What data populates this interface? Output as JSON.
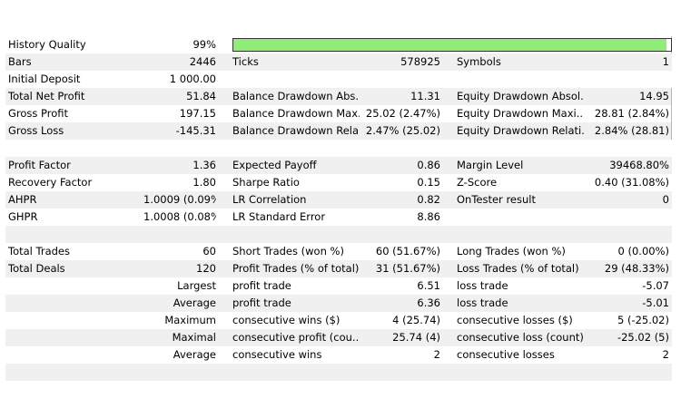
{
  "history_quality": {
    "label": "History Quality",
    "value": "99%",
    "fill_percent": 99,
    "bar_color": "#90ee78"
  },
  "rows": [
    {
      "id": "bars",
      "alt": true,
      "c0": "Bars",
      "c1": "2446",
      "c2": "Ticks",
      "c3": "578925",
      "c4": "Symbols",
      "c5": "1"
    },
    {
      "id": "initial-deposit",
      "alt": false,
      "c0": "Initial Deposit",
      "c1": "1 000.00",
      "c2": "",
      "c3": "",
      "c4": "",
      "c5": ""
    },
    {
      "id": "net-profit",
      "alt": true,
      "c0": "Total Net Profit",
      "c1": "51.84",
      "c2": "Balance Drawdown Abs...",
      "c3": "11.31",
      "c4": "Equity Drawdown Absol...",
      "c5": "14.95"
    },
    {
      "id": "gross-profit",
      "alt": false,
      "c0": "Gross Profit",
      "c1": "197.15",
      "c2": "Balance Drawdown Max...",
      "c3": "25.02 (2.47%)",
      "c4": "Equity Drawdown Maxi...",
      "c5": "28.81 (2.84%)"
    },
    {
      "id": "gross-loss",
      "alt": true,
      "c0": "Gross Loss",
      "c1": "-145.31",
      "c2": "Balance Drawdown Rela...",
      "c3": "2.47% (25.02)",
      "c4": "Equity Drawdown Relati...",
      "c5": "2.84% (28.81)"
    },
    {
      "id": "spacer-1",
      "alt": false,
      "c0": "",
      "c1": "",
      "c2": "",
      "c3": "",
      "c4": "",
      "c5": ""
    },
    {
      "id": "profit-factor",
      "alt": true,
      "c0": "Profit Factor",
      "c1": "1.36",
      "c2": "Expected Payoff",
      "c3": "0.86",
      "c4": "Margin Level",
      "c5": "39468.80%"
    },
    {
      "id": "recovery-factor",
      "alt": false,
      "c0": "Recovery Factor",
      "c1": "1.80",
      "c2": "Sharpe Ratio",
      "c3": "0.15",
      "c4": "Z-Score",
      "c5": "0.40 (31.08%)"
    },
    {
      "id": "ahpr",
      "alt": true,
      "c0": "AHPR",
      "c1": "1.0009 (0.09%)",
      "c2": "LR Correlation",
      "c3": "0.82",
      "c4": "OnTester result",
      "c5": "0"
    },
    {
      "id": "ghpr",
      "alt": false,
      "c0": "GHPR",
      "c1": "1.0008 (0.08%)",
      "c2": "LR Standard Error",
      "c3": "8.86",
      "c4": "",
      "c5": ""
    },
    {
      "id": "spacer-2",
      "alt": true,
      "c0": "",
      "c1": "",
      "c2": "",
      "c3": "",
      "c4": "",
      "c5": ""
    },
    {
      "id": "total-trades",
      "alt": false,
      "c0": "Total Trades",
      "c1": "60",
      "c2": "Short Trades (won %)",
      "c3": "60 (51.67%)",
      "c4": "Long Trades (won %)",
      "c5": "0 (0.00%)"
    },
    {
      "id": "total-deals",
      "alt": true,
      "c0": "Total Deals",
      "c1": "120",
      "c2": "Profit Trades (% of total)",
      "c3": "31 (51.67%)",
      "c4": "Loss Trades (% of total)",
      "c5": "29 (48.33%)"
    },
    {
      "id": "largest",
      "alt": false,
      "c0": "Largest",
      "c0_right": true,
      "c1": "",
      "c2": "profit trade",
      "c3": "6.51",
      "c4": "loss trade",
      "c5": "-5.07"
    },
    {
      "id": "average",
      "alt": true,
      "c0": "Average",
      "c0_right": true,
      "c1": "",
      "c2": "profit trade",
      "c3": "6.36",
      "c4": "loss trade",
      "c5": "-5.01"
    },
    {
      "id": "maximum",
      "alt": false,
      "c0": "Maximum",
      "c0_right": true,
      "c1": "",
      "c2": "consecutive wins ($)",
      "c3": "4 (25.74)",
      "c4": "consecutive losses ($)",
      "c5": "5 (-25.02)"
    },
    {
      "id": "maximal",
      "alt": true,
      "c0": "Maximal",
      "c0_right": true,
      "c1": "",
      "c2": "consecutive profit (cou...",
      "c3": "25.74 (4)",
      "c4": "consecutive loss (count)",
      "c5": "-25.02 (5)"
    },
    {
      "id": "average-consecutive",
      "alt": false,
      "c0": "Average",
      "c0_right": true,
      "c1": "",
      "c2": "consecutive wins",
      "c3": "2",
      "c4": "consecutive losses",
      "c5": "2"
    },
    {
      "id": "spacer-3",
      "alt": true,
      "c0": "",
      "c1": "",
      "c2": "",
      "c3": "",
      "c4": "",
      "c5": ""
    }
  ]
}
